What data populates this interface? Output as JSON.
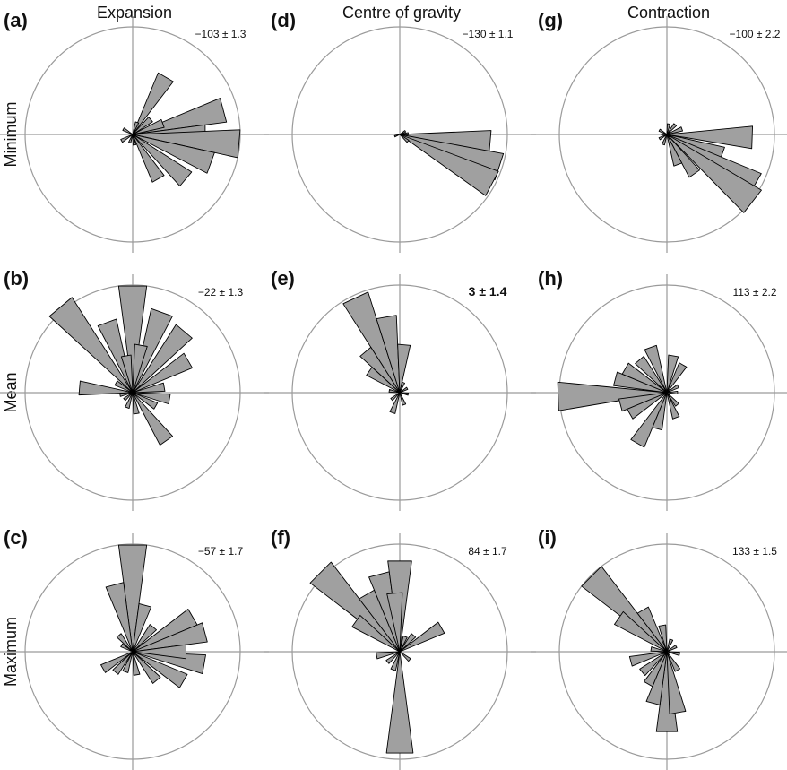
{
  "chart_data": {
    "type": "polar-histogram",
    "description_units": "bin direction in degrees (compass, clockwise from north); value = relative bar length (1 = circle radius)",
    "columns": [
      "Expansion",
      "Centre of gravity",
      "Contraction"
    ],
    "rows": [
      "Minimum",
      "Mean",
      "Maximum"
    ],
    "panels": [
      {
        "id": "a",
        "label": "(a)",
        "row": 0,
        "col": 0,
        "stat": "−103 ± 1.3",
        "bold": false,
        "bins": [
          {
            "dir": 30,
            "value": 0.62
          },
          {
            "dir": 50,
            "value": 0.22
          },
          {
            "dir": 75,
            "value": 0.88
          },
          {
            "dir": 90,
            "value": 0.68
          },
          {
            "dir": 95,
            "value": 1.0
          },
          {
            "dir": 110,
            "value": 0.78
          },
          {
            "dir": 130,
            "value": 0.65
          },
          {
            "dir": 150,
            "value": 0.48
          },
          {
            "dir": 70,
            "value": 0.3
          },
          {
            "dir": 20,
            "value": 0.12
          },
          {
            "dir": 240,
            "value": 0.12
          },
          {
            "dir": 300,
            "value": 0.1
          },
          {
            "dir": 200,
            "value": 0.08
          },
          {
            "dir": 170,
            "value": 0.1
          }
        ]
      },
      {
        "id": "b",
        "label": "(b)",
        "row": 1,
        "col": 0,
        "stat": "−22 ± 1.3",
        "bold": false,
        "bins": [
          {
            "dir": 0,
            "value": 1.0
          },
          {
            "dir": 320,
            "value": 1.05
          },
          {
            "dir": 340,
            "value": 0.7
          },
          {
            "dir": 20,
            "value": 0.8
          },
          {
            "dir": 40,
            "value": 0.75
          },
          {
            "dir": 60,
            "value": 0.6
          },
          {
            "dir": 10,
            "value": 0.45
          },
          {
            "dir": 350,
            "value": 0.35
          },
          {
            "dir": 275,
            "value": 0.5
          },
          {
            "dir": 100,
            "value": 0.35
          },
          {
            "dir": 80,
            "value": 0.3
          },
          {
            "dir": 145,
            "value": 0.55
          },
          {
            "dir": 120,
            "value": 0.25
          },
          {
            "dir": 170,
            "value": 0.2
          },
          {
            "dir": 200,
            "value": 0.15
          },
          {
            "dir": 230,
            "value": 0.1
          },
          {
            "dir": 260,
            "value": 0.12
          },
          {
            "dir": 300,
            "value": 0.18
          }
        ]
      },
      {
        "id": "c",
        "label": "(c)",
        "row": 2,
        "col": 0,
        "stat": "−57 ± 1.7",
        "bold": false,
        "bins": [
          {
            "dir": 0,
            "value": 1.0
          },
          {
            "dir": 345,
            "value": 0.65
          },
          {
            "dir": 15,
            "value": 0.45
          },
          {
            "dir": 60,
            "value": 0.65
          },
          {
            "dir": 75,
            "value": 0.7
          },
          {
            "dir": 100,
            "value": 0.68
          },
          {
            "dir": 120,
            "value": 0.55
          },
          {
            "dir": 140,
            "value": 0.35
          },
          {
            "dir": 40,
            "value": 0.3
          },
          {
            "dir": 90,
            "value": 0.5
          },
          {
            "dir": 320,
            "value": 0.2
          },
          {
            "dir": 300,
            "value": 0.12
          },
          {
            "dir": 240,
            "value": 0.32
          },
          {
            "dir": 220,
            "value": 0.25
          },
          {
            "dir": 200,
            "value": 0.2
          },
          {
            "dir": 170,
            "value": 0.22
          }
        ]
      },
      {
        "id": "d",
        "label": "(d)",
        "row": 0,
        "col": 1,
        "stat": "−130 ± 1.1",
        "bold": false,
        "bins": [
          {
            "dir": 95,
            "value": 0.85
          },
          {
            "dir": 108,
            "value": 0.98
          },
          {
            "dir": 118,
            "value": 0.98
          },
          {
            "dir": 85,
            "value": 0.08
          },
          {
            "dir": 130,
            "value": 0.1
          },
          {
            "dir": 250,
            "value": 0.05
          },
          {
            "dir": 60,
            "value": 0.06
          }
        ]
      },
      {
        "id": "e",
        "label": "(e)",
        "row": 1,
        "col": 1,
        "stat": "3 ± 1.4",
        "bold": true,
        "bins": [
          {
            "dir": 335,
            "value": 0.98
          },
          {
            "dir": 350,
            "value": 0.72
          },
          {
            "dir": 5,
            "value": 0.45
          },
          {
            "dir": 320,
            "value": 0.5
          },
          {
            "dir": 305,
            "value": 0.35
          },
          {
            "dir": 20,
            "value": 0.1
          },
          {
            "dir": 60,
            "value": 0.08
          },
          {
            "dir": 100,
            "value": 0.08
          },
          {
            "dir": 160,
            "value": 0.12
          },
          {
            "dir": 200,
            "value": 0.2
          },
          {
            "dir": 230,
            "value": 0.1
          },
          {
            "dir": 280,
            "value": 0.1
          }
        ]
      },
      {
        "id": "f",
        "label": "(f)",
        "row": 2,
        "col": 1,
        "stat": "84 ± 1.7",
        "bold": false,
        "bins": [
          {
            "dir": 315,
            "value": 1.05
          },
          {
            "dir": 330,
            "value": 0.62
          },
          {
            "dir": 345,
            "value": 0.75
          },
          {
            "dir": 0,
            "value": 0.85
          },
          {
            "dir": 355,
            "value": 0.55
          },
          {
            "dir": 305,
            "value": 0.5
          },
          {
            "dir": 180,
            "value": 0.95
          },
          {
            "dir": 60,
            "value": 0.45
          },
          {
            "dir": 40,
            "value": 0.2
          },
          {
            "dir": 20,
            "value": 0.15
          },
          {
            "dir": 130,
            "value": 0.12
          },
          {
            "dir": 200,
            "value": 0.18
          },
          {
            "dir": 230,
            "value": 0.15
          },
          {
            "dir": 260,
            "value": 0.22
          }
        ]
      },
      {
        "id": "g",
        "label": "(g)",
        "row": 0,
        "col": 2,
        "stat": "−100 ± 2.2",
        "bold": false,
        "bins": [
          {
            "dir": 92,
            "value": 0.8
          },
          {
            "dir": 110,
            "value": 0.55
          },
          {
            "dir": 120,
            "value": 0.95
          },
          {
            "dir": 128,
            "value": 1.02
          },
          {
            "dir": 145,
            "value": 0.45
          },
          {
            "dir": 160,
            "value": 0.3
          },
          {
            "dir": 70,
            "value": 0.15
          },
          {
            "dir": 40,
            "value": 0.12
          },
          {
            "dir": 10,
            "value": 0.1
          },
          {
            "dir": 300,
            "value": 0.08
          },
          {
            "dir": 270,
            "value": 0.05
          },
          {
            "dir": 200,
            "value": 0.1
          },
          {
            "dir": 240,
            "value": 0.08
          }
        ]
      },
      {
        "id": "h",
        "label": "(h)",
        "row": 1,
        "col": 2,
        "stat": "113 ± 2.2",
        "bold": false,
        "bins": [
          {
            "dir": 268,
            "value": 1.02
          },
          {
            "dir": 285,
            "value": 0.5
          },
          {
            "dir": 300,
            "value": 0.45
          },
          {
            "dir": 320,
            "value": 0.4
          },
          {
            "dir": 340,
            "value": 0.45
          },
          {
            "dir": 10,
            "value": 0.35
          },
          {
            "dir": 30,
            "value": 0.3
          },
          {
            "dir": 210,
            "value": 0.55
          },
          {
            "dir": 195,
            "value": 0.35
          },
          {
            "dir": 240,
            "value": 0.4
          },
          {
            "dir": 255,
            "value": 0.45
          },
          {
            "dir": 160,
            "value": 0.25
          },
          {
            "dir": 140,
            "value": 0.15
          },
          {
            "dir": 90,
            "value": 0.1
          },
          {
            "dir": 60,
            "value": 0.12
          }
        ]
      },
      {
        "id": "i",
        "label": "(i)",
        "row": 2,
        "col": 2,
        "stat": "133 ± 1.5",
        "bold": false,
        "bins": [
          {
            "dir": 315,
            "value": 1.0
          },
          {
            "dir": 305,
            "value": 0.55
          },
          {
            "dir": 330,
            "value": 0.45
          },
          {
            "dir": 350,
            "value": 0.25
          },
          {
            "dir": 180,
            "value": 0.75
          },
          {
            "dir": 170,
            "value": 0.58
          },
          {
            "dir": 195,
            "value": 0.5
          },
          {
            "dir": 210,
            "value": 0.35
          },
          {
            "dir": 230,
            "value": 0.3
          },
          {
            "dir": 255,
            "value": 0.35
          },
          {
            "dir": 150,
            "value": 0.2
          },
          {
            "dir": 100,
            "value": 0.12
          },
          {
            "dir": 60,
            "value": 0.1
          },
          {
            "dir": 20,
            "value": 0.12
          },
          {
            "dir": 280,
            "value": 0.15
          }
        ]
      }
    ]
  }
}
